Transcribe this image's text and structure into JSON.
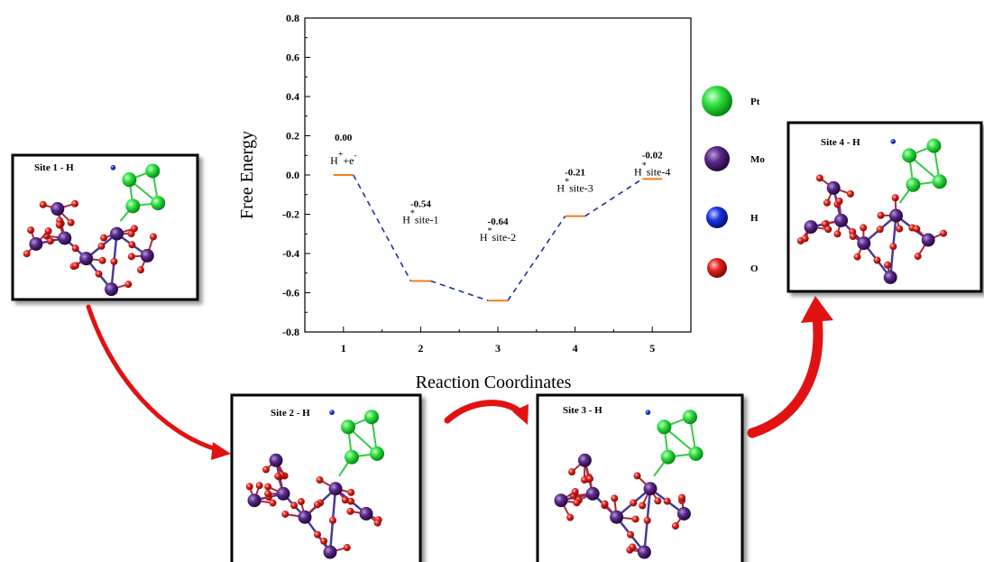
{
  "chart_data": {
    "type": "line",
    "xlabel": "Reaction Coordinates",
    "ylabel": "Free Energy",
    "xlim": [
      0.5,
      5.5
    ],
    "ylim": [
      -0.8,
      0.8
    ],
    "x_ticks": [
      "1",
      "2",
      "3",
      "4",
      "5"
    ],
    "y_ticks": [
      "0.8",
      "0.6",
      "0.4",
      "0.2",
      "0.0",
      "-0.2",
      "-0.4",
      "-0.6",
      "-0.8"
    ],
    "points": [
      {
        "x": 1,
        "y": 0.0,
        "value_label": "0.00",
        "state_main": "H",
        "state_sup": "+",
        "state_tail": "+e",
        "state_tail_sup": "-"
      },
      {
        "x": 2,
        "y": -0.54,
        "value_label": "-0.54",
        "state_main": "H",
        "state_sup": "*",
        "state_tail": "site-1",
        "state_tail_sup": ""
      },
      {
        "x": 3,
        "y": -0.64,
        "value_label": "-0.64",
        "state_main": "H",
        "state_sup": "*",
        "state_tail": "site-2",
        "state_tail_sup": ""
      },
      {
        "x": 4,
        "y": -0.21,
        "value_label": "-0.21",
        "state_main": "H",
        "state_sup": "*",
        "state_tail": "site-3",
        "state_tail_sup": ""
      },
      {
        "x": 5,
        "y": -0.02,
        "value_label": "-0.02",
        "state_main": "H",
        "state_sup": "*",
        "state_tail": "site-4",
        "state_tail_sup": ""
      }
    ],
    "level_color": "#f07f1a",
    "line_color": "#1f2fa8",
    "line_style": "dashed"
  },
  "legend": [
    {
      "label": "Pt",
      "color": "#22dd33"
    },
    {
      "label": "Mo",
      "color": "#5a2a8a"
    },
    {
      "label": "H",
      "color": "#1c35e6"
    },
    {
      "label": "O",
      "color": "#e0241f"
    }
  ],
  "panels": [
    {
      "title": "Site 1 - H"
    },
    {
      "title": "Site 2 - H"
    },
    {
      "title": "Site 3 - H"
    },
    {
      "title": "Site 4 - H"
    }
  ],
  "colors": {
    "arrow": "#e11212",
    "mo_bond": "#4a3a9a",
    "o_atom": "#d8261e",
    "pt_bond": "#33cc44"
  }
}
